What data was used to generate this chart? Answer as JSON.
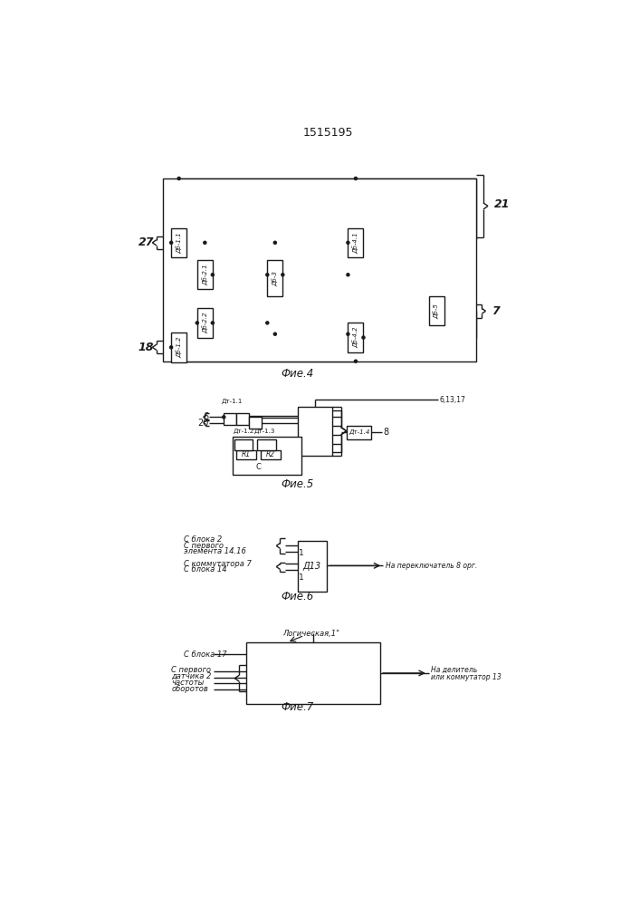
{
  "title": "1515195",
  "fig4_label": "Фие.4",
  "fig5_label": "Фие.5",
  "fig6_label": "Фие.6",
  "fig7_label": "Фие.7",
  "bg_color": "#ffffff",
  "line_color": "#1a1a1a",
  "box_color": "#ffffff"
}
